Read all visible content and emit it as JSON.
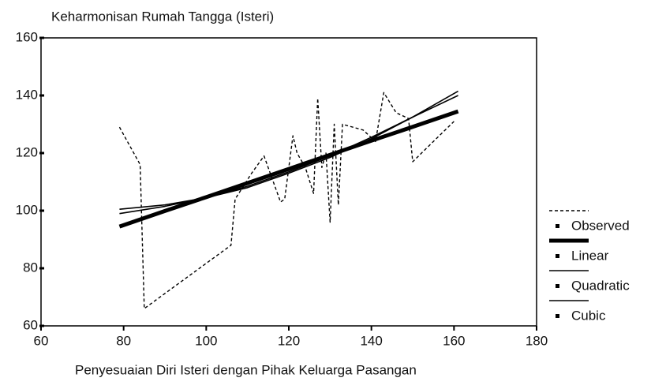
{
  "chart_data": {
    "type": "line",
    "title": "Keharmonisan Rumah Tangga (Isteri)",
    "x_label": "Penyesuaian Diri Isteri dengan Pihak Keluarga Pasangan",
    "xlim": [
      60,
      180
    ],
    "xticks": [
      60,
      80,
      100,
      120,
      140,
      160,
      180
    ],
    "ylim": [
      60,
      160
    ],
    "yticks": [
      60,
      80,
      100,
      120,
      140,
      160
    ],
    "series": [
      {
        "name": "Observed",
        "color": "#000000",
        "style": "dashed",
        "x": [
          79,
          84,
          85,
          106,
          107,
          111,
          114,
          118,
          119,
          121,
          122,
          124,
          126,
          127,
          128,
          129,
          130,
          131,
          132,
          133,
          138,
          141,
          143,
          146,
          149,
          150,
          160
        ],
        "values": [
          129,
          116,
          66,
          88,
          104,
          113,
          119,
          103,
          104,
          126,
          120,
          115,
          106,
          139,
          115,
          120,
          96,
          130,
          102,
          130,
          128,
          124,
          141,
          134,
          132,
          117,
          131
        ]
      },
      {
        "name": "Linear",
        "color": "#000000",
        "style": "thick",
        "x": [
          79,
          90,
          100,
          110,
          120,
          130,
          140,
          150,
          161
        ],
        "values": [
          94.5,
          99.9,
          104.7,
          109.6,
          114.5,
          119.4,
          124.3,
          129.1,
          134.5
        ]
      },
      {
        "name": "Quadratic",
        "color": "#000000",
        "style": "solid",
        "x": [
          79,
          90,
          100,
          110,
          120,
          130,
          140,
          150,
          161
        ],
        "values": [
          99,
          101.5,
          104.5,
          108.5,
          113.5,
          119,
          125.5,
          132.5,
          140
        ]
      },
      {
        "name": "Cubic",
        "color": "#000000",
        "style": "solid",
        "x": [
          79,
          90,
          100,
          110,
          120,
          130,
          140,
          150,
          161
        ],
        "values": [
          100.5,
          102,
          104.5,
          108,
          113,
          118.5,
          125,
          132.5,
          141.5
        ]
      }
    ]
  }
}
